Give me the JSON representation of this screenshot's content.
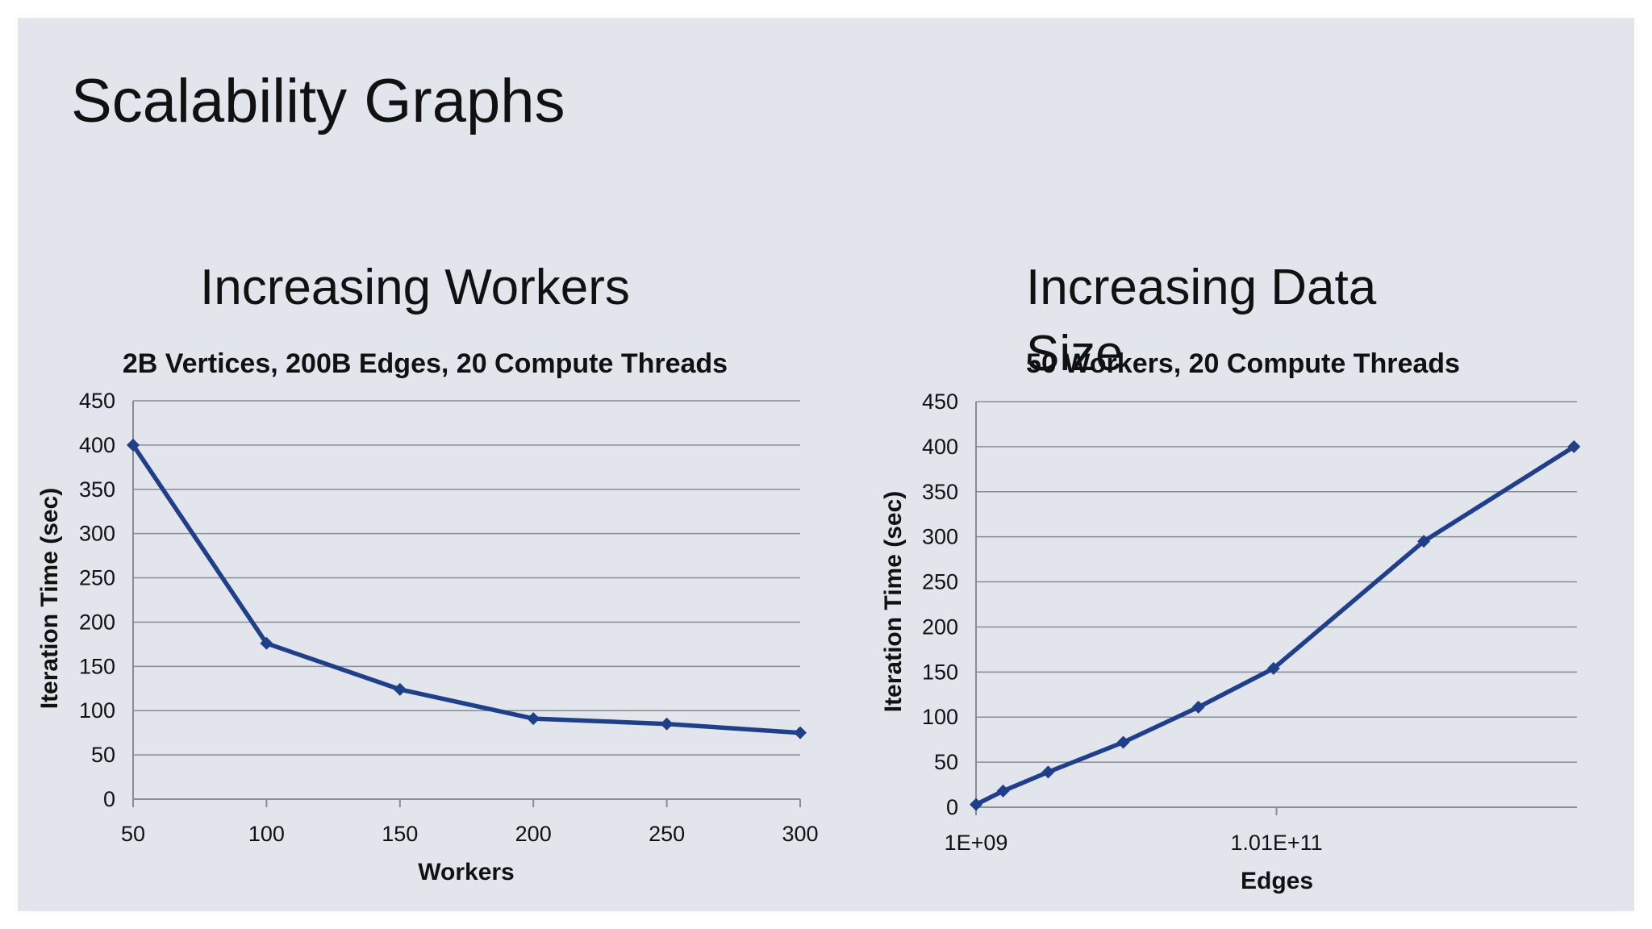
{
  "slide_title": "Scalability Graphs",
  "subtitles": [
    "Increasing Workers",
    "Increasing Data Size"
  ],
  "colors": {
    "series": "#1f3f88",
    "background": "#e3e5ed",
    "grid": "#8a8c94"
  },
  "chart_data": [
    {
      "type": "line",
      "title": "2B Vertices, 200B Edges, 20 Compute Threads",
      "xlabel": "Workers",
      "ylabel": "Iteration Time (sec)",
      "xlim": [
        50,
        300
      ],
      "ylim": [
        0,
        450
      ],
      "x_ticks": [
        50,
        100,
        150,
        200,
        250,
        300
      ],
      "y_ticks": [
        0,
        50,
        100,
        150,
        200,
        250,
        300,
        350,
        400,
        450
      ],
      "grid": true,
      "marker": "diamond",
      "x": [
        50,
        100,
        150,
        200,
        250,
        300
      ],
      "y": [
        400,
        176,
        124,
        91,
        85,
        75
      ]
    },
    {
      "type": "line",
      "title": "50 Workers, 20 Compute Threads",
      "xlabel": "Edges",
      "ylabel": "Iteration Time (sec)",
      "xlim": [
        1000000000.0,
        201000000000.0
      ],
      "ylim": [
        0,
        450
      ],
      "x_ticks": [
        1000000000.0,
        101000000000.0
      ],
      "x_tick_labels": [
        "1E+09",
        "1.01E+11"
      ],
      "y_ticks": [
        0,
        50,
        100,
        150,
        200,
        250,
        300,
        350,
        400,
        450
      ],
      "grid": true,
      "marker": "diamond",
      "x": [
        1000000000.0,
        10000000000.0,
        25000000000.0,
        50000000000.0,
        75000000000.0,
        100000000000.0,
        150000000000.0,
        200000000000.0
      ],
      "y": [
        3,
        18,
        39,
        72,
        111,
        154,
        295,
        400
      ]
    }
  ]
}
